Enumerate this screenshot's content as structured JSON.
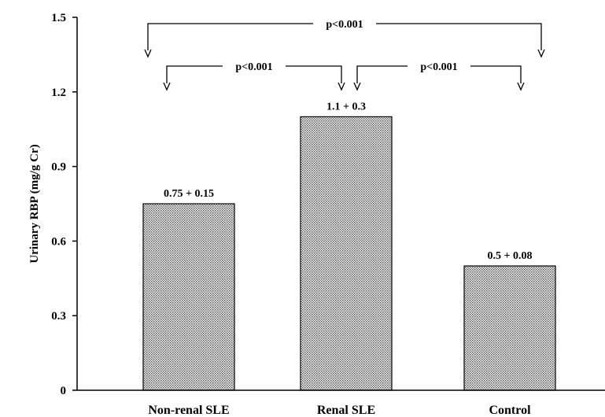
{
  "chart_data": {
    "type": "bar",
    "categories": [
      "Non-renal SLE",
      "Renal SLE",
      "Control"
    ],
    "values": [
      0.75,
      1.1,
      0.5
    ],
    "data_labels": [
      "0.75 + 0.15",
      "1.1 + 0.3",
      "0.5 + 0.08"
    ],
    "ylabel": "Urinary RBP (mg/g Cr)",
    "ylim": [
      0,
      1.5
    ],
    "yticks": [
      0,
      0.3,
      0.6,
      0.9,
      1.2,
      1.5
    ],
    "ytick_labels": [
      "0",
      "0.3",
      "0.6",
      "0.9",
      "1.2",
      "1.5"
    ],
    "grid": false,
    "bar_fill": "#d0d0d0",
    "significance": [
      {
        "from": 0,
        "to": 2,
        "label": "p<0.001"
      },
      {
        "from": 0,
        "to": 1,
        "label": "p<0.001"
      },
      {
        "from": 1,
        "to": 2,
        "label": "p<0.001"
      }
    ]
  }
}
